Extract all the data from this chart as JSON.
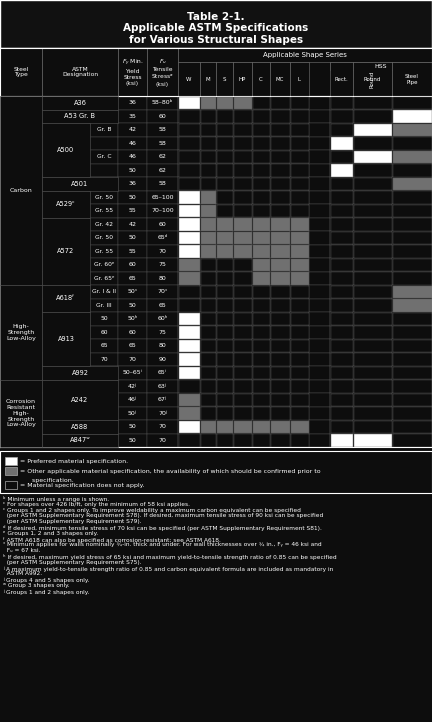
{
  "title_line1": "Table 2-1.",
  "title_line2": "Applicable ASTM Specifications",
  "title_line3": "for Various Structural Shapes",
  "bg_color": "#0d0d0d",
  "rows": [
    {
      "steel_type": "Carbon",
      "astm": "A36",
      "sub": "",
      "fy": "36",
      "fu": "58–80ᵇ",
      "cells": [
        "P",
        "O",
        "O",
        "O",
        "N",
        "N",
        "N",
        "N",
        "N",
        "N"
      ]
    },
    {
      "steel_type": "",
      "astm": "A53 Gr. B",
      "sub": "",
      "fy": "35",
      "fu": "60",
      "cells": [
        "N",
        "N",
        "N",
        "N",
        "N",
        "N",
        "N",
        "N",
        "N",
        "P"
      ]
    },
    {
      "steel_type": "",
      "astm": "A500",
      "sub": "Gr. B",
      "fy": "42",
      "fu": "58",
      "cells": [
        "N",
        "N",
        "N",
        "N",
        "N",
        "N",
        "N",
        "N",
        "P",
        "O"
      ]
    },
    {
      "steel_type": "",
      "astm": "",
      "sub": "",
      "fy": "46",
      "fu": "58",
      "cells": [
        "N",
        "N",
        "N",
        "N",
        "N",
        "N",
        "N",
        "P",
        "N",
        "N"
      ]
    },
    {
      "steel_type": "",
      "astm": "",
      "sub": "Gr. C",
      "fy": "46",
      "fu": "62",
      "cells": [
        "N",
        "N",
        "N",
        "N",
        "N",
        "N",
        "N",
        "N",
        "P",
        "O"
      ]
    },
    {
      "steel_type": "",
      "astm": "",
      "sub": "",
      "fy": "50",
      "fu": "62",
      "cells": [
        "N",
        "N",
        "N",
        "N",
        "N",
        "N",
        "N",
        "P",
        "N",
        "N"
      ]
    },
    {
      "steel_type": "",
      "astm": "A501",
      "sub": "",
      "fy": "36",
      "fu": "58",
      "cells": [
        "N",
        "N",
        "N",
        "N",
        "N",
        "N",
        "N",
        "N",
        "N",
        "O"
      ]
    },
    {
      "steel_type": "",
      "astm": "A529ᶜ",
      "sub": "Gr. 50",
      "fy": "50",
      "fu": "65–100",
      "cells": [
        "P",
        "O",
        "N",
        "N",
        "N",
        "N",
        "N",
        "N",
        "N",
        "N"
      ]
    },
    {
      "steel_type": "",
      "astm": "",
      "sub": "Gr. 55",
      "fy": "55",
      "fu": "70–100",
      "cells": [
        "P",
        "O",
        "N",
        "N",
        "N",
        "N",
        "N",
        "N",
        "N",
        "N"
      ]
    },
    {
      "steel_type": "",
      "astm": "A572",
      "sub": "Gr. 42",
      "fy": "42",
      "fu": "60",
      "cells": [
        "P",
        "O",
        "O",
        "O",
        "O",
        "O",
        "O",
        "N",
        "N",
        "N"
      ]
    },
    {
      "steel_type": "",
      "astm": "",
      "sub": "Gr. 50",
      "fy": "50",
      "fu": "65ᵈ",
      "cells": [
        "P",
        "O",
        "O",
        "O",
        "O",
        "O",
        "O",
        "N",
        "N",
        "N"
      ]
    },
    {
      "steel_type": "",
      "astm": "",
      "sub": "Gr. 55",
      "fy": "55",
      "fu": "70",
      "cells": [
        "P",
        "O",
        "O",
        "O",
        "O",
        "O",
        "O",
        "N",
        "N",
        "N"
      ]
    },
    {
      "steel_type": "",
      "astm": "",
      "sub": "Gr. 60ᵉ",
      "fy": "60",
      "fu": "75",
      "cells": [
        "O",
        "N",
        "N",
        "N",
        "O",
        "O",
        "O",
        "N",
        "N",
        "N"
      ]
    },
    {
      "steel_type": "",
      "astm": "",
      "sub": "Gr. 65ᵉ",
      "fy": "65",
      "fu": "80",
      "cells": [
        "O",
        "N",
        "N",
        "N",
        "O",
        "O",
        "O",
        "N",
        "N",
        "N"
      ]
    },
    {
      "steel_type": "High-\nStrength\nLow-Alloy",
      "astm": "A618ᶠ",
      "sub": "Gr. I & II",
      "fy": "50ᶟ",
      "fu": "70ᶟ",
      "cells": [
        "N",
        "N",
        "N",
        "N",
        "N",
        "N",
        "N",
        "N",
        "N",
        "O"
      ]
    },
    {
      "steel_type": "",
      "astm": "",
      "sub": "Gr. III",
      "fy": "50",
      "fu": "65",
      "cells": [
        "N",
        "N",
        "N",
        "N",
        "N",
        "N",
        "N",
        "N",
        "N",
        "O"
      ]
    },
    {
      "steel_type": "",
      "astm": "A913",
      "sub": "50",
      "fy": "50ʰ",
      "fu": "60ʰ",
      "cells": [
        "P",
        "N",
        "N",
        "N",
        "N",
        "N",
        "N",
        "N",
        "N",
        "N"
      ]
    },
    {
      "steel_type": "",
      "astm": "",
      "sub": "60",
      "fy": "60",
      "fu": "75",
      "cells": [
        "P",
        "N",
        "N",
        "N",
        "N",
        "N",
        "N",
        "N",
        "N",
        "N"
      ]
    },
    {
      "steel_type": "",
      "astm": "",
      "sub": "65",
      "fy": "65",
      "fu": "80",
      "cells": [
        "P",
        "N",
        "N",
        "N",
        "N",
        "N",
        "N",
        "N",
        "N",
        "N"
      ]
    },
    {
      "steel_type": "",
      "astm": "",
      "sub": "70",
      "fy": "70",
      "fu": "90",
      "cells": [
        "P",
        "N",
        "N",
        "N",
        "N",
        "N",
        "N",
        "N",
        "N",
        "N"
      ]
    },
    {
      "steel_type": "",
      "astm": "A992",
      "sub": "",
      "fy": "50–65ⁱ",
      "fu": "65ⁱ",
      "cells": [
        "P",
        "N",
        "N",
        "N",
        "N",
        "N",
        "N",
        "N",
        "N",
        "N"
      ]
    },
    {
      "steel_type": "Corrosion\nResistant\nHigh-\nStrength\nLow-Alloy",
      "astm": "A242",
      "sub": "",
      "fy": "42ʲ",
      "fu": "63ʲ",
      "cells": [
        "N",
        "N",
        "N",
        "N",
        "N",
        "N",
        "N",
        "N",
        "N",
        "N"
      ]
    },
    {
      "steel_type": "",
      "astm": "",
      "sub": "",
      "fy": "46ʲ",
      "fu": "67ʲ",
      "cells": [
        "O",
        "N",
        "N",
        "N",
        "N",
        "N",
        "N",
        "N",
        "N",
        "N"
      ]
    },
    {
      "steel_type": "",
      "astm": "",
      "sub": "",
      "fy": "50ʲ",
      "fu": "70ʲ",
      "cells": [
        "O",
        "N",
        "N",
        "N",
        "N",
        "N",
        "N",
        "N",
        "N",
        "N"
      ]
    },
    {
      "steel_type": "",
      "astm": "A588",
      "sub": "",
      "fy": "50",
      "fu": "70",
      "cells": [
        "P",
        "O",
        "O",
        "O",
        "O",
        "O",
        "O",
        "N",
        "N",
        "N"
      ]
    },
    {
      "steel_type": "",
      "astm": "A847ʷ",
      "sub": "",
      "fy": "50",
      "fu": "70",
      "cells": [
        "N",
        "N",
        "N",
        "N",
        "N",
        "N",
        "N",
        "P",
        "P",
        "N"
      ]
    }
  ],
  "legend_items": [
    {
      "fc": "#ffffff",
      "ec": "#888888",
      "text": "= Preferred material specification."
    },
    {
      "fc": "#707070",
      "ec": "#888888",
      "text": "= Other applicable material specification, the availability of which should be confirmed prior to\n  specification."
    },
    {
      "fc": "#0d0d0d",
      "ec": "#888888",
      "text": "= Material specification does not apply."
    }
  ],
  "footnotes": [
    "ᵇ Minimum unless a range is shown.",
    "ᶜ For shapes over 426 lb/ft, only the minimum of 58 ksi applies.",
    "ᶜ Groups 1 and 2 shapes only. To improve weldability a maximum carbon equivalent can be specified\n  (per ASTM Supplementary Requirement S78). If desired, maximum tensile stress of 90 ksi can be specified\n  (per ASTM Supplementary Requirement S79).",
    "ᵈ If desired, minimum tensile stress of 70 ksi can be specified (per ASTM Supplementary Requirement S81).",
    "ᵉ Groups 1, 2 and 3 shapes only.",
    "ᶠ ASTM A618 can also be specified as corrosion-resistant; see ASTM A618.",
    "ᶟ Minimum applies for walls nominally ¾-in. thick and under. For wall thicknesses over ¾ in., Fᵧ = 46 ksi and\n  Fᵤ = 67 ksi.",
    "ʰ If desired, maximum yield stress of 65 ksi and maximum yield-to-tensile strength ratio of 0.85 can be specified\n  (per ASTM Supplementary Requirement S75).",
    "ʲ A maximum yield-to-tensile strength ratio of 0.85 and carbon equivalent formula are included as mandatory in\n  ASTM A992.",
    "ʲ Groups 4 and 5 shapes only.",
    "ʷ Group 3 shapes only.",
    "ʲ Groups 1 and 2 shapes only."
  ]
}
